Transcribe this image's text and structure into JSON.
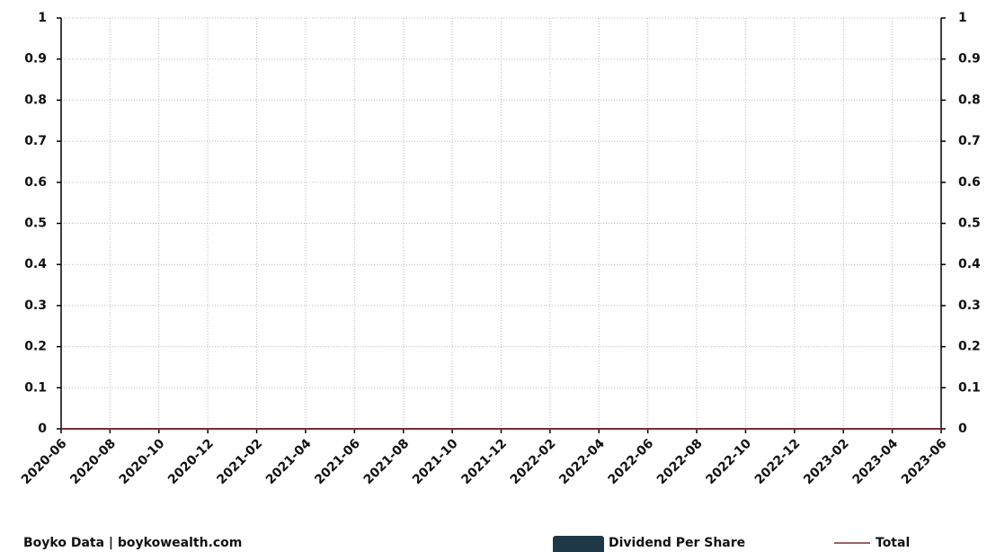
{
  "chart_data": {
    "type": "bar-line",
    "x": [
      "2020-06",
      "2020-08",
      "2020-10",
      "2020-12",
      "2021-02",
      "2021-04",
      "2021-06",
      "2021-08",
      "2021-10",
      "2021-12",
      "2022-02",
      "2022-04",
      "2022-06",
      "2022-08",
      "2022-10",
      "2022-12",
      "2023-02",
      "2023-04",
      "2023-06"
    ],
    "series": [
      {
        "name": "Dividend Per Share",
        "color": "#1e3848",
        "type": "bar",
        "values": [
          0,
          0,
          0,
          0,
          0,
          0,
          0,
          0,
          0,
          0,
          0,
          0,
          0,
          0,
          0,
          0,
          0,
          0,
          0
        ]
      },
      {
        "name": "Total",
        "color": "#7a2e2e",
        "type": "line",
        "axis": "y2",
        "values": [
          0,
          0,
          0,
          0,
          0,
          0,
          0,
          0,
          0,
          0,
          0,
          0,
          0,
          0,
          0,
          0,
          0,
          0,
          0
        ]
      }
    ],
    "ylim": [
      0,
      1
    ],
    "yticks": [
      0,
      0.1,
      0.2,
      0.3,
      0.4,
      0.5,
      0.6,
      0.7,
      0.8,
      0.9,
      1
    ],
    "y2lim": [
      0,
      1
    ],
    "y2ticks": [
      0,
      0.1,
      0.2,
      0.3,
      0.4,
      0.5,
      0.6,
      0.7,
      0.8,
      0.9,
      1
    ],
    "grid": true,
    "source": "Boyko Data | boykowealth.com"
  }
}
